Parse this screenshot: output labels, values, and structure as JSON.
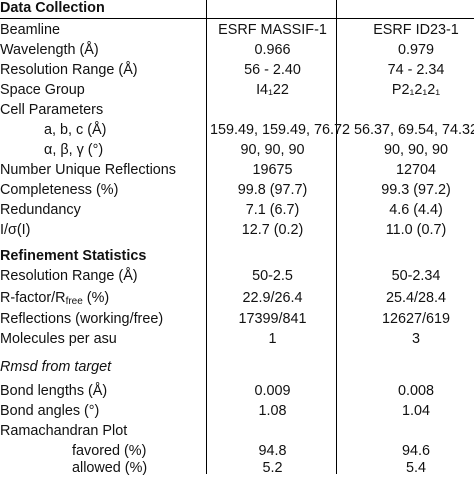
{
  "header": {
    "beamline_label": "Beamline",
    "col1": "ESRF MASSIF-1",
    "col2": "ESRF ID23-1"
  },
  "sections": {
    "data_collection": "Data Collection",
    "refinement": "Refinement Statistics",
    "rmsd": "Rmsd from target"
  },
  "rows": {
    "wavelength": {
      "label": "Wavelength (Å)",
      "v1": "0.966",
      "v2": "0.979"
    },
    "resolution": {
      "label": "Resolution Range (Å)",
      "v1": "56 - 2.40",
      "v2": "74 - 2.34"
    },
    "space_group": {
      "label": "Space Group",
      "v1": "I4₁22",
      "v2": "P2₁2₁2₁"
    },
    "cell_params": {
      "label": "Cell Parameters"
    },
    "abc": {
      "label": "a, b, c (Å)",
      "v1": "159.49, 159.49, 76.72",
      "v2": "56.37, 69.54, 74.32"
    },
    "angles": {
      "label": "α, β, γ (°)",
      "v1": "90, 90, 90",
      "v2": "90, 90, 90"
    },
    "unique_refl": {
      "label": "Number Unique Reflections",
      "v1": "19675",
      "v2": "12704"
    },
    "completeness": {
      "label": "Completeness (%)",
      "v1": "99.8 (97.7)",
      "v2": "99.3 (97.2)"
    },
    "redundancy": {
      "label": "Redundancy",
      "v1": "7.1 (6.7)",
      "v2": "4.6 (4.4)"
    },
    "i_sigma": {
      "label": "I/σ(I)",
      "v1": "12.7 (0.2)",
      "v2": "11.0 (0.7)"
    },
    "ref_resolution": {
      "label": "Resolution Range (Å)",
      "v1": "50-2.5",
      "v2": "50-2.34"
    },
    "rfactor": {
      "label_a": "R-factor/R",
      "label_sub": "free",
      "label_b": " (%)",
      "v1": "22.9/26.4",
      "v2": "25.4/28.4"
    },
    "reflections": {
      "label": "Reflections (working/free)",
      "v1": "17399/841",
      "v2": "12627/619"
    },
    "molecules": {
      "label": "Molecules per asu",
      "v1": "1",
      "v2": "3"
    },
    "bond_lengths": {
      "label": "Bond lengths (Å)",
      "v1": "0.009",
      "v2": "0.008"
    },
    "bond_angles": {
      "label": "Bond angles (°)",
      "v1": "1.08",
      "v2": "1.04"
    },
    "rama": {
      "label": "Ramachandran Plot"
    },
    "favored": {
      "label": "favored (%)",
      "v1": "94.8",
      "v2": "94.6"
    },
    "allowed": {
      "label": "allowed (%)",
      "v1": "5.2",
      "v2": "5.4"
    }
  }
}
